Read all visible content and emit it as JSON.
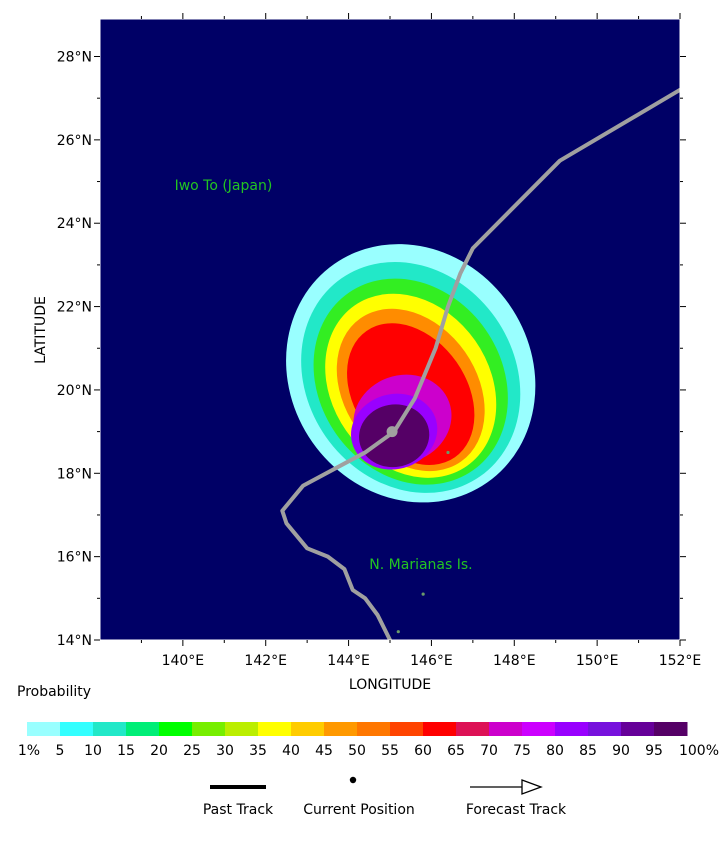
{
  "map": {
    "ocean_color": "#000066",
    "xlabel": "LONGITUDE",
    "ylabel": "LATITUDE",
    "lon_range": [
      138.0,
      152.0
    ],
    "lat_range": [
      14.0,
      28.9
    ],
    "lat_ticks": [
      {
        "value": 14,
        "label": "14°N"
      },
      {
        "value": 16,
        "label": "16°N"
      },
      {
        "value": 18,
        "label": "18°N"
      },
      {
        "value": 20,
        "label": "20°N"
      },
      {
        "value": 22,
        "label": "22°N"
      },
      {
        "value": 24,
        "label": "24°N"
      },
      {
        "value": 26,
        "label": "26°N"
      },
      {
        "value": 28,
        "label": "28°N"
      }
    ],
    "lon_ticks": [
      {
        "value": 140,
        "label": "140°E"
      },
      {
        "value": 142,
        "label": "142°E"
      },
      {
        "value": 144,
        "label": "144°E"
      },
      {
        "value": 146,
        "label": "146°E"
      },
      {
        "value": 148,
        "label": "148°E"
      },
      {
        "value": 150,
        "label": "150°E"
      },
      {
        "value": 152,
        "label": "152°E"
      }
    ],
    "place_labels": [
      {
        "name": "Iwo To (Japan)",
        "lon": 139.8,
        "lat": 24.8,
        "color": "#22c422"
      },
      {
        "name": "N. Marianas Is.",
        "lon": 144.5,
        "lat": 15.7,
        "color": "#22c422"
      }
    ],
    "track_color": "#a0a0a0",
    "track": [
      [
        145.1,
        13.8
      ],
      [
        144.7,
        14.6
      ],
      [
        144.4,
        15.0
      ],
      [
        144.1,
        15.2
      ],
      [
        143.9,
        15.7
      ],
      [
        143.5,
        16.0
      ],
      [
        143.0,
        16.2
      ],
      [
        142.5,
        16.8
      ],
      [
        142.4,
        17.1
      ],
      [
        142.9,
        17.7
      ],
      [
        144.4,
        18.5
      ],
      [
        145.1,
        19.0
      ],
      [
        145.6,
        19.8
      ],
      [
        146.1,
        21.0
      ],
      [
        146.4,
        22.0
      ],
      [
        146.7,
        22.8
      ],
      [
        147.0,
        23.4
      ],
      [
        149.1,
        25.5
      ],
      [
        152.0,
        27.2
      ]
    ],
    "current_position": {
      "lon": 145.05,
      "lat": 19.0
    },
    "probability_rings": [
      {
        "value": 1,
        "color": "#99ffff",
        "cx": 145.5,
        "cy": 20.4,
        "rx": 2.9,
        "ry": 3.2,
        "rot": -35
      },
      {
        "value": 10,
        "color": "#22e8c8",
        "cx": 145.5,
        "cy": 20.3,
        "rx": 2.5,
        "ry": 2.9,
        "rot": -35
      },
      {
        "value": 25,
        "color": "#33ee22",
        "cx": 145.5,
        "cy": 20.2,
        "rx": 2.2,
        "ry": 2.6,
        "rot": -35
      },
      {
        "value": 40,
        "color": "#ffff00",
        "cx": 145.5,
        "cy": 20.1,
        "rx": 1.9,
        "ry": 2.35,
        "rot": -35
      },
      {
        "value": 50,
        "color": "#ff8c00",
        "cx": 145.5,
        "cy": 20.0,
        "rx": 1.6,
        "ry": 2.1,
        "rot": -35
      },
      {
        "value": 60,
        "color": "#ff0000",
        "cx": 145.5,
        "cy": 19.9,
        "rx": 1.35,
        "ry": 1.85,
        "rot": -35
      },
      {
        "value": 75,
        "color": "#cc00cc",
        "cx": 145.3,
        "cy": 19.3,
        "rx": 1.2,
        "ry": 1.05,
        "rot": -20
      },
      {
        "value": 85,
        "color": "#9900ff",
        "cx": 145.1,
        "cy": 19.0,
        "rx": 1.05,
        "ry": 0.9,
        "rot": -15
      },
      {
        "value": 95,
        "color": "#550066",
        "cx": 145.1,
        "cy": 18.9,
        "rx": 0.85,
        "ry": 0.75,
        "rot": -10
      }
    ]
  },
  "legend": {
    "title": "Probability",
    "bins": [
      {
        "label": "1%",
        "color": "#99ffff"
      },
      {
        "label": "5",
        "color": "#33ffff"
      },
      {
        "label": "10",
        "color": "#22e8c8"
      },
      {
        "label": "15",
        "color": "#00ee77"
      },
      {
        "label": "20",
        "color": "#00ff00"
      },
      {
        "label": "25",
        "color": "#77ee00"
      },
      {
        "label": "30",
        "color": "#bbee00"
      },
      {
        "label": "35",
        "color": "#ffff00"
      },
      {
        "label": "40",
        "color": "#ffcc00"
      },
      {
        "label": "45",
        "color": "#ff9900"
      },
      {
        "label": "50",
        "color": "#ff7700"
      },
      {
        "label": "55",
        "color": "#ff4400"
      },
      {
        "label": "60",
        "color": "#ff0000"
      },
      {
        "label": "65",
        "color": "#dd1155"
      },
      {
        "label": "70",
        "color": "#cc00cc"
      },
      {
        "label": "75",
        "color": "#cc00ff"
      },
      {
        "label": "80",
        "color": "#9900ff"
      },
      {
        "label": "85",
        "color": "#7711dd"
      },
      {
        "label": "90",
        "color": "#660099"
      },
      {
        "label": "95",
        "color": "#550066"
      }
    ],
    "end_label": "100%",
    "past_track_label": "Past Track",
    "current_position_label": "Current Position",
    "forecast_track_label": "Forecast Track"
  }
}
